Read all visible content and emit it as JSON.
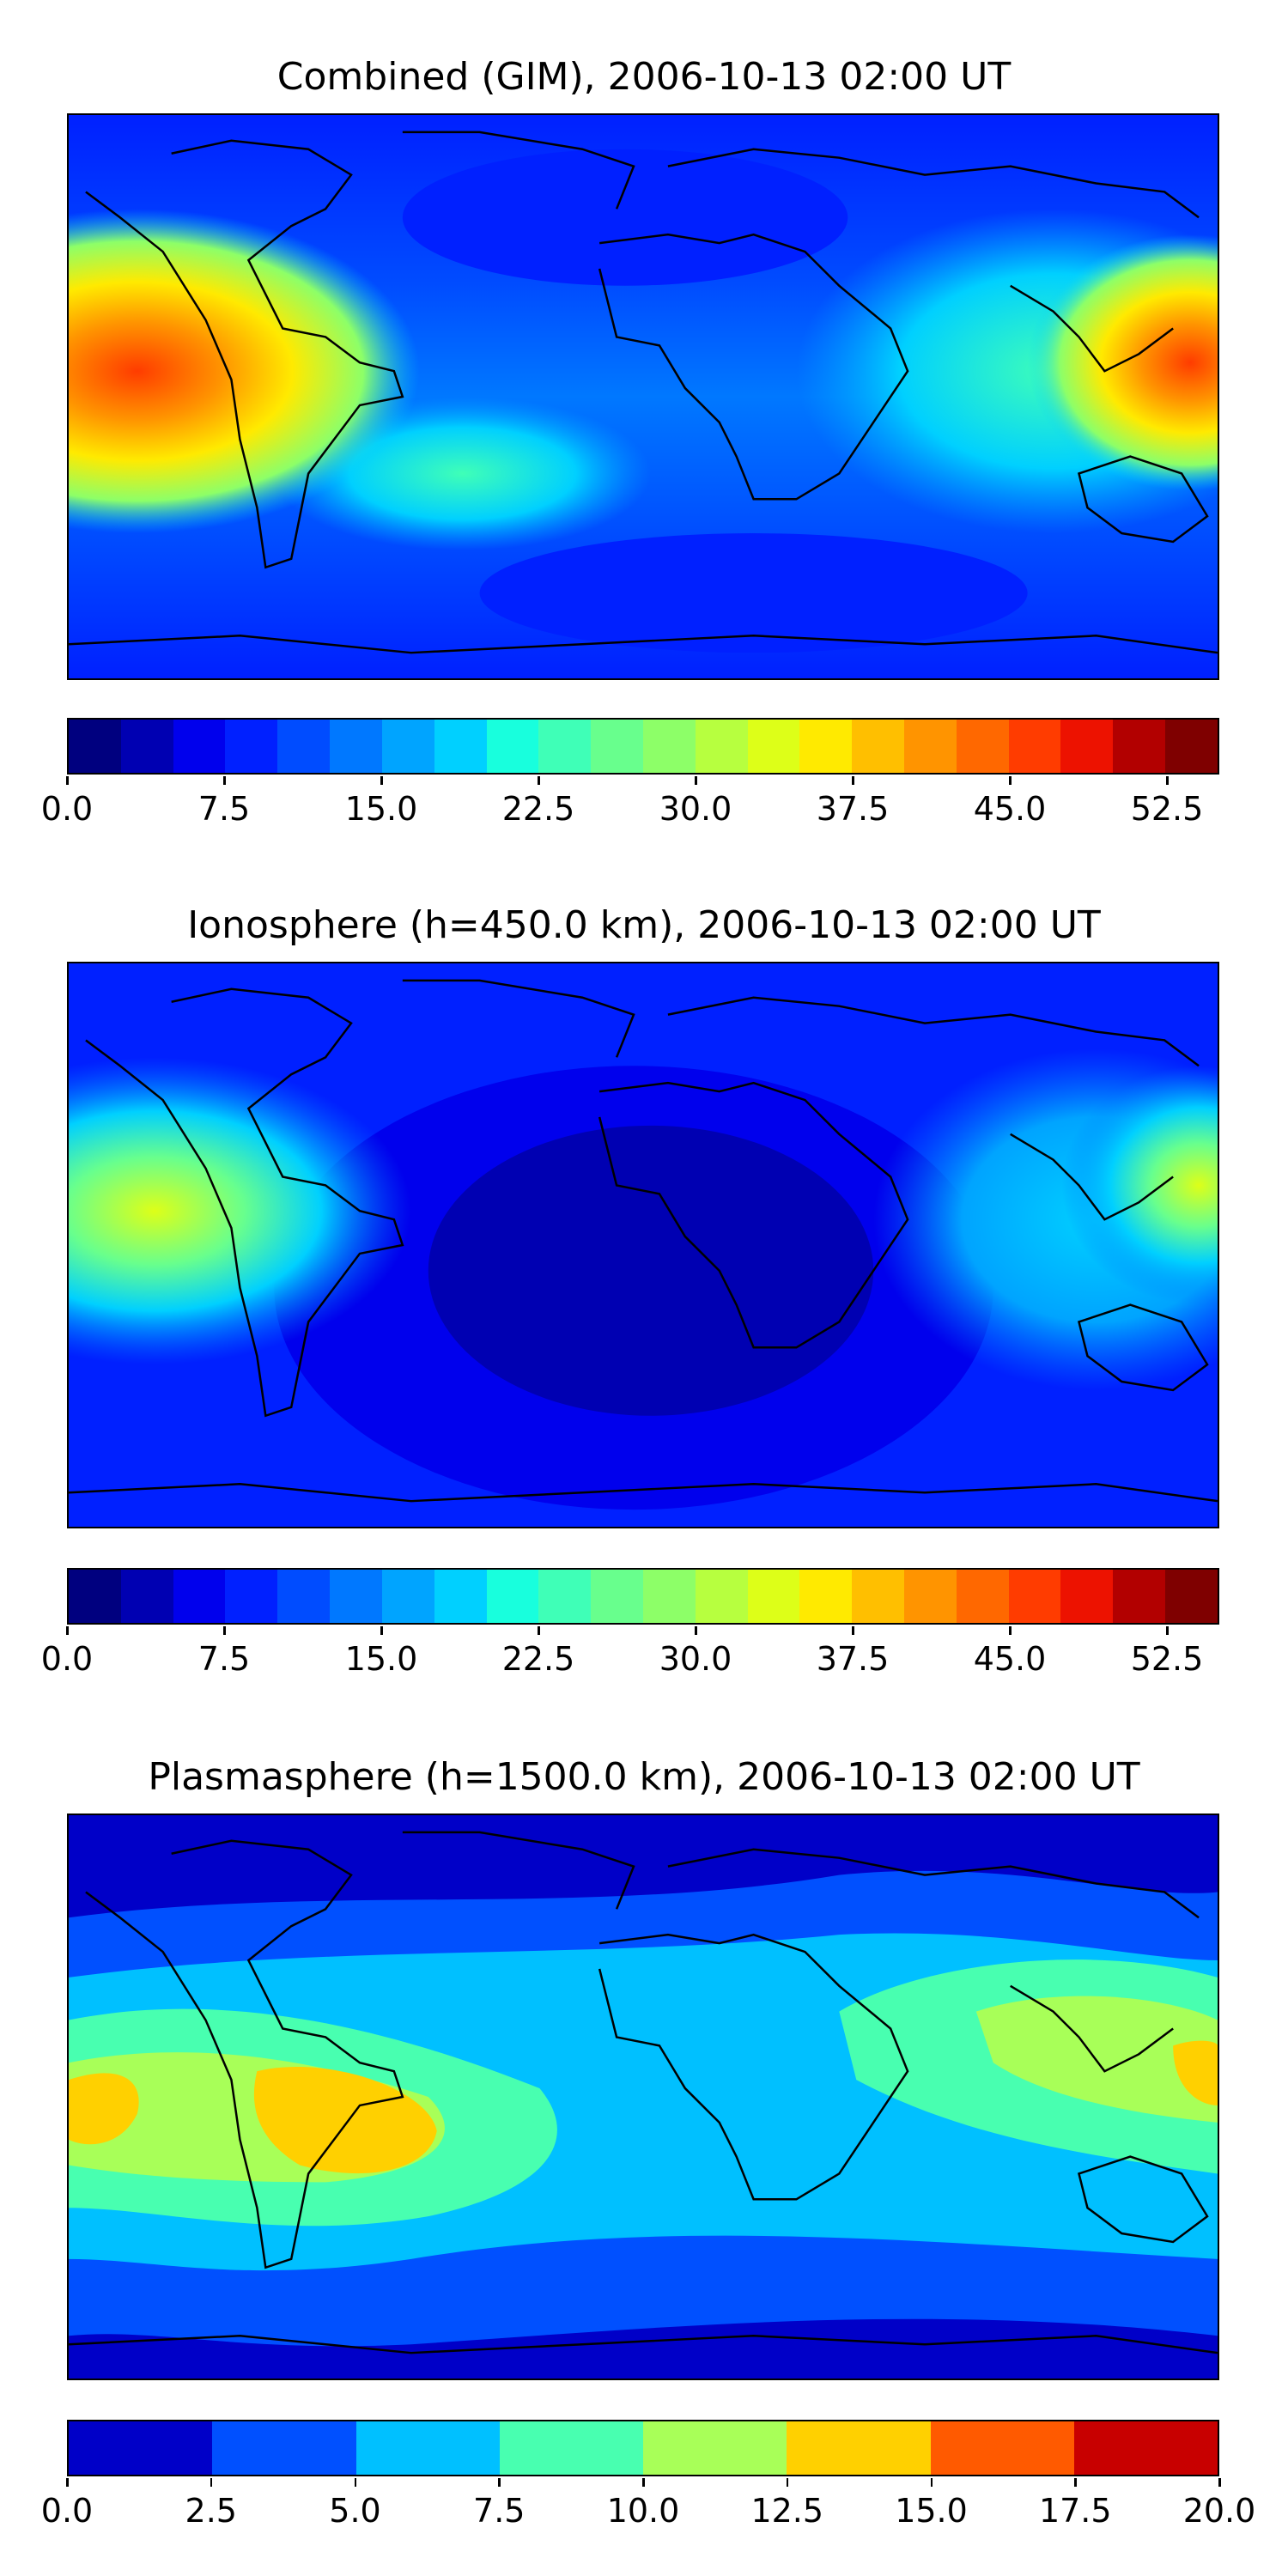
{
  "panels": [
    {
      "title": "Combined (GIM), 2006-10-13 02:00 UT",
      "colorbar": {
        "levels": [
          0,
          2.5,
          5,
          7.5,
          10,
          12.5,
          15,
          17.5,
          20,
          22.5,
          25,
          27.5,
          30,
          32.5,
          35,
          37.5,
          40,
          42.5,
          45,
          47.5,
          50,
          52.5,
          55
        ],
        "tick_labels": [
          "0.0",
          "7.5",
          "15.0",
          "22.5",
          "30.0",
          "37.5",
          "45.0",
          "52.5"
        ],
        "tick_values": [
          0,
          7.5,
          15,
          22.5,
          30,
          37.5,
          45,
          52.5
        ],
        "colors": [
          "#00007f",
          "#0000b2",
          "#0000ed",
          "#0020ff",
          "#004cff",
          "#0078ff",
          "#00a4ff",
          "#00d0ff",
          "#18ffdd",
          "#3fffb7",
          "#68ff8d",
          "#8dff68",
          "#b7ff3f",
          "#ddff18",
          "#ffea00",
          "#ffbf00",
          "#ff9400",
          "#ff6800",
          "#ff3c00",
          "#ed1200",
          "#b20000",
          "#7f0000"
        ]
      }
    },
    {
      "title": "Ionosphere  (h=450.0 km), 2006-10-13 02:00 UT",
      "colorbar": {
        "levels": [
          0,
          2.5,
          5,
          7.5,
          10,
          12.5,
          15,
          17.5,
          20,
          22.5,
          25,
          27.5,
          30,
          32.5,
          35,
          37.5,
          40,
          42.5,
          45,
          47.5,
          50,
          52.5,
          55
        ],
        "tick_labels": [
          "0.0",
          "7.5",
          "15.0",
          "22.5",
          "30.0",
          "37.5",
          "45.0",
          "52.5"
        ],
        "tick_values": [
          0,
          7.5,
          15,
          22.5,
          30,
          37.5,
          45,
          52.5
        ],
        "colors": [
          "#00007f",
          "#0000b2",
          "#0000ed",
          "#0020ff",
          "#004cff",
          "#0078ff",
          "#00a4ff",
          "#00d0ff",
          "#18ffdd",
          "#3fffb7",
          "#68ff8d",
          "#8dff68",
          "#b7ff3f",
          "#ddff18",
          "#ffea00",
          "#ffbf00",
          "#ff9400",
          "#ff6800",
          "#ff3c00",
          "#ed1200",
          "#b20000",
          "#7f0000"
        ]
      }
    },
    {
      "title": "Plasmasphere (h=1500.0 km), 2006-10-13 02:00 UT",
      "colorbar": {
        "levels": [
          0,
          2.5,
          5,
          7.5,
          10,
          12.5,
          15,
          17.5,
          20
        ],
        "tick_labels": [
          "0.0",
          "2.5",
          "5.0",
          "7.5",
          "10.0",
          "12.5",
          "15.0",
          "17.5",
          "20.0"
        ],
        "tick_values": [
          0,
          2.5,
          5,
          7.5,
          10,
          12.5,
          15,
          17.5,
          20
        ],
        "colors": [
          "#0000c8",
          "#0050ff",
          "#00c0ff",
          "#48ffb0",
          "#a8ff58",
          "#ffd000",
          "#ff5a00",
          "#c80000"
        ]
      }
    }
  ],
  "chart_data": [
    {
      "type": "heatmap",
      "title": "Combined (GIM), 2006-10-13 02:00 UT",
      "xlabel": "",
      "ylabel": "",
      "xlim": [
        -180,
        180
      ],
      "ylim": [
        -90,
        90
      ],
      "projection": "plate carree",
      "colormap": "jet",
      "levels": [
        0,
        55
      ],
      "maxima": [
        {
          "lon": -170,
          "lat": 8,
          "value": 45
        },
        {
          "lon": 178,
          "lat": 8,
          "value": 45
        }
      ],
      "grid": false
    },
    {
      "type": "heatmap",
      "title": "Ionosphere  (h=450.0 km), 2006-10-13 02:00 UT",
      "xlabel": "",
      "ylabel": "",
      "xlim": [
        -180,
        180
      ],
      "ylim": [
        -90,
        90
      ],
      "projection": "plate carree",
      "colormap": "jet",
      "levels": [
        0,
        55
      ],
      "maxima": [
        {
          "lon": -172,
          "lat": 8,
          "value": 32
        },
        {
          "lon": 178,
          "lat": 8,
          "value": 30
        }
      ],
      "grid": false
    },
    {
      "type": "heatmap",
      "title": "Plasmasphere (h=1500.0 km), 2006-10-13 02:00 UT",
      "xlabel": "",
      "ylabel": "",
      "xlim": [
        -180,
        180
      ],
      "ylim": [
        -90,
        90
      ],
      "projection": "plate carree",
      "colormap": "jet",
      "levels": [
        0,
        20
      ],
      "maxima": [
        {
          "lon": -60,
          "lat": -10,
          "value": 13.5
        },
        {
          "lon": 172,
          "lat": 5,
          "value": 13
        }
      ],
      "grid": false
    }
  ]
}
